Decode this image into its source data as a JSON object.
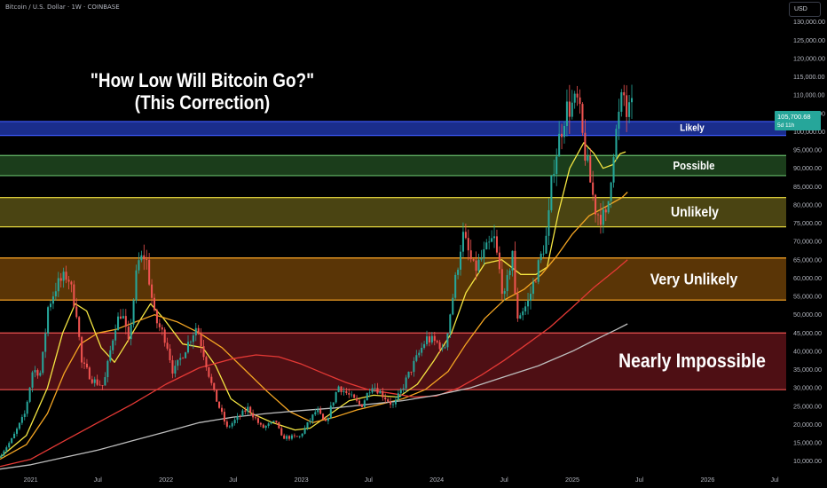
{
  "header": {
    "symbol": "Bitcoin / U.S. Dollar · 1W · COINBASE",
    "currency": "USD"
  },
  "headline": {
    "line1": "\"How Low Will Bitcoin Go?\"",
    "line2": "(This Correction)"
  },
  "price_tag": {
    "value": "105,700.68",
    "countdown": "5d 11h"
  },
  "colors": {
    "background": "#000000",
    "bull": "#26a69a",
    "bear": "#ef5350",
    "ma_fast": "#f5e642",
    "ma_mid": "#f5a623",
    "ma_slow": "#e53935",
    "ma_long": "#bdbdbd"
  },
  "chart_data": {
    "type": "candlestick",
    "timeframe": "1W",
    "y_axis": {
      "ylim": [
        7000,
        136000
      ],
      "ticks": [
        "10,000.00",
        "15,000.00",
        "20,000.00",
        "25,000.00",
        "30,000.00",
        "35,000.00",
        "40,000.00",
        "45,000.00",
        "50,000.00",
        "55,000.00",
        "60,000.00",
        "65,000.00",
        "70,000.00",
        "75,000.00",
        "80,000.00",
        "85,000.00",
        "90,000.00",
        "95,000.00",
        "100,000.00",
        "105,000.00",
        "110,000.00",
        "115,000.00",
        "120,000.00",
        "125,000.00",
        "130,000.00"
      ],
      "tick_values": [
        10000,
        15000,
        20000,
        25000,
        30000,
        35000,
        40000,
        45000,
        50000,
        55000,
        60000,
        65000,
        70000,
        75000,
        80000,
        85000,
        90000,
        95000,
        100000,
        105000,
        110000,
        115000,
        120000,
        125000,
        130000
      ]
    },
    "x_axis": {
      "labels": [
        "2021",
        "Jul",
        "2022",
        "Jul",
        "2023",
        "Jul",
        "2024",
        "Jul",
        "2025",
        "Jul",
        "2026",
        "Jul"
      ],
      "dates": [
        "2021-01-01",
        "2021-07-01",
        "2022-01-01",
        "2022-07-01",
        "2023-01-01",
        "2023-07-01",
        "2024-01-01",
        "2024-07-01",
        "2025-01-01",
        "2025-07-01",
        "2026-01-01",
        "2026-07-01"
      ],
      "range": [
        "2020-10-10",
        "2026-08-01"
      ]
    },
    "zones": [
      {
        "label": "Likely",
        "low": 99000,
        "high": 102800,
        "fill": "#1a2d8c",
        "border": "#3d5afe",
        "label_color": "#ffffff"
      },
      {
        "label": "Possible",
        "low": 88000,
        "high": 93500,
        "fill": "#1b3d1b",
        "border": "#66bb6a",
        "label_color": "#ffffff"
      },
      {
        "label": "Unlikely",
        "low": 74000,
        "high": 82000,
        "fill": "#4a4412",
        "border": "#f5e642",
        "label_color": "#ffffff"
      },
      {
        "label": "Very Unlikely",
        "low": 54000,
        "high": 65500,
        "fill": "#5a3506",
        "border": "#ffa726",
        "label_color": "#ffffff"
      },
      {
        "label": "Nearly Impossible",
        "low": 29500,
        "high": 45000,
        "fill": "#4e0f14",
        "border": "#ef5350",
        "label_color": "#ffffff"
      }
    ],
    "price_path": [
      [
        "2020-10-10",
        11000
      ],
      [
        "2020-11-15",
        16000
      ],
      [
        "2020-12-20",
        23000
      ],
      [
        "2021-01-10",
        35000
      ],
      [
        "2021-02-01",
        34000
      ],
      [
        "2021-02-20",
        52000
      ],
      [
        "2021-03-15",
        58000
      ],
      [
        "2021-04-14",
        61000
      ],
      [
        "2021-05-10",
        50000
      ],
      [
        "2021-05-20",
        37000
      ],
      [
        "2021-06-22",
        32000
      ],
      [
        "2021-07-20",
        30500
      ],
      [
        "2021-08-20",
        47000
      ],
      [
        "2021-09-07",
        51000
      ],
      [
        "2021-09-25",
        42000
      ],
      [
        "2021-10-20",
        64000
      ],
      [
        "2021-11-10",
        66500
      ],
      [
        "2021-12-05",
        49000
      ],
      [
        "2022-01-05",
        43000
      ],
      [
        "2022-01-24",
        34000
      ],
      [
        "2022-03-28",
        47000
      ],
      [
        "2022-05-12",
        29000
      ],
      [
        "2022-06-18",
        19000
      ],
      [
        "2022-08-14",
        24500
      ],
      [
        "2022-09-20",
        19000
      ],
      [
        "2022-10-30",
        20800
      ],
      [
        "2022-11-10",
        16500
      ],
      [
        "2022-12-30",
        16500
      ],
      [
        "2023-02-15",
        24000
      ],
      [
        "2023-03-10",
        20000
      ],
      [
        "2023-04-14",
        30500
      ],
      [
        "2023-06-15",
        25000
      ],
      [
        "2023-07-14",
        31000
      ],
      [
        "2023-09-11",
        25000
      ],
      [
        "2023-10-25",
        34500
      ],
      [
        "2023-12-08",
        43500
      ],
      [
        "2024-01-12",
        42000
      ],
      [
        "2024-01-23",
        39000
      ],
      [
        "2024-02-28",
        62000
      ],
      [
        "2024-03-14",
        72000
      ],
      [
        "2024-04-15",
        62000
      ],
      [
        "2024-06-07",
        71000
      ],
      [
        "2024-07-05",
        54000
      ],
      [
        "2024-07-29",
        69000
      ],
      [
        "2024-08-05",
        49000
      ],
      [
        "2024-09-06",
        53000
      ],
      [
        "2024-10-29",
        72000
      ],
      [
        "2024-11-13",
        90000
      ],
      [
        "2024-12-17",
        106000
      ],
      [
        "2025-01-20",
        108000
      ],
      [
        "2025-02-03",
        97000
      ],
      [
        "2025-02-26",
        84000
      ],
      [
        "2025-03-10",
        78000
      ],
      [
        "2025-04-07",
        76000
      ],
      [
        "2025-04-25",
        95000
      ],
      [
        "2025-05-22",
        111000
      ],
      [
        "2025-06-01",
        104000
      ],
      [
        "2025-06-08",
        105700
      ]
    ],
    "moving_averages": [
      {
        "name": "ma_fast",
        "color": "#f5e642",
        "points": [
          [
            "2020-10-10",
            11000
          ],
          [
            "2020-12-20",
            17000
          ],
          [
            "2021-02-15",
            30000
          ],
          [
            "2021-03-28",
            45000
          ],
          [
            "2021-05-01",
            53000
          ],
          [
            "2021-06-01",
            51000
          ],
          [
            "2021-07-10",
            41000
          ],
          [
            "2021-08-15",
            37000
          ],
          [
            "2021-09-15",
            42000
          ],
          [
            "2021-10-20",
            48000
          ],
          [
            "2021-11-20",
            53000
          ],
          [
            "2021-12-25",
            49000
          ],
          [
            "2022-02-15",
            42000
          ],
          [
            "2022-04-10",
            41000
          ],
          [
            "2022-05-15",
            36000
          ],
          [
            "2022-06-25",
            27000
          ],
          [
            "2022-08-20",
            23000
          ],
          [
            "2022-10-15",
            20500
          ],
          [
            "2022-12-15",
            18500
          ],
          [
            "2023-01-25",
            19000
          ],
          [
            "2023-03-15",
            22500
          ],
          [
            "2023-05-10",
            26500
          ],
          [
            "2023-07-15",
            28000
          ],
          [
            "2023-09-20",
            27500
          ],
          [
            "2023-11-10",
            31000
          ],
          [
            "2023-12-25",
            37500
          ],
          [
            "2024-02-10",
            45000
          ],
          [
            "2024-03-20",
            56000
          ],
          [
            "2024-05-10",
            64000
          ],
          [
            "2024-06-25",
            65000
          ],
          [
            "2024-08-15",
            61000
          ],
          [
            "2024-09-25",
            61000
          ],
          [
            "2024-10-25",
            63000
          ],
          [
            "2024-11-25",
            78000
          ],
          [
            "2024-12-25",
            90000
          ],
          [
            "2025-02-01",
            97000
          ],
          [
            "2025-03-01",
            94000
          ],
          [
            "2025-03-25",
            90000
          ],
          [
            "2025-04-20",
            91000
          ],
          [
            "2025-05-10",
            94000
          ],
          [
            "2025-05-25",
            94500
          ]
        ]
      },
      {
        "name": "ma_mid",
        "color": "#f5a623",
        "points": [
          [
            "2020-10-10",
            10500
          ],
          [
            "2020-12-20",
            14500
          ],
          [
            "2021-02-15",
            23000
          ],
          [
            "2021-04-01",
            34000
          ],
          [
            "2021-05-15",
            42000
          ],
          [
            "2021-07-01",
            45000
          ],
          [
            "2021-08-20",
            46000
          ],
          [
            "2021-10-10",
            48000
          ],
          [
            "2021-12-01",
            50000
          ],
          [
            "2022-02-01",
            48000
          ],
          [
            "2022-04-01",
            45000
          ],
          [
            "2022-06-01",
            41000
          ],
          [
            "2022-08-01",
            35000
          ],
          [
            "2022-10-01",
            29000
          ],
          [
            "2022-12-01",
            23500
          ],
          [
            "2023-02-01",
            20500
          ],
          [
            "2023-04-01",
            22000
          ],
          [
            "2023-06-01",
            24000
          ],
          [
            "2023-08-01",
            25500
          ],
          [
            "2023-10-01",
            27000
          ],
          [
            "2023-12-01",
            29500
          ],
          [
            "2024-02-01",
            34500
          ],
          [
            "2024-03-20",
            42000
          ],
          [
            "2024-05-10",
            49000
          ],
          [
            "2024-07-01",
            54000
          ],
          [
            "2024-08-25",
            57000
          ],
          [
            "2024-10-10",
            61000
          ],
          [
            "2024-11-20",
            66000
          ],
          [
            "2025-01-01",
            72000
          ],
          [
            "2025-02-15",
            77000
          ],
          [
            "2025-04-01",
            79500
          ],
          [
            "2025-05-15",
            82000
          ],
          [
            "2025-05-30",
            83500
          ]
        ]
      },
      {
        "name": "ma_slow",
        "color": "#e53935",
        "points": [
          [
            "2020-10-10",
            8500
          ],
          [
            "2021-01-01",
            10500
          ],
          [
            "2021-04-01",
            15500
          ],
          [
            "2021-07-01",
            20500
          ],
          [
            "2021-10-01",
            25500
          ],
          [
            "2022-01-01",
            31000
          ],
          [
            "2022-04-01",
            35500
          ],
          [
            "2022-07-01",
            38000
          ],
          [
            "2022-09-01",
            39000
          ],
          [
            "2022-11-01",
            38500
          ],
          [
            "2023-01-01",
            36500
          ],
          [
            "2023-03-01",
            34000
          ],
          [
            "2023-05-01",
            31500
          ],
          [
            "2023-07-01",
            29500
          ],
          [
            "2023-09-01",
            28500
          ],
          [
            "2023-11-01",
            27500
          ],
          [
            "2024-01-01",
            27800
          ],
          [
            "2024-03-01",
            30000
          ],
          [
            "2024-05-01",
            33500
          ],
          [
            "2024-07-01",
            37500
          ],
          [
            "2024-09-01",
            42000
          ],
          [
            "2024-11-01",
            46500
          ],
          [
            "2025-01-01",
            52000
          ],
          [
            "2025-03-01",
            57500
          ],
          [
            "2025-05-01",
            62500
          ],
          [
            "2025-05-30",
            65000
          ]
        ]
      },
      {
        "name": "ma_long",
        "color": "#bdbdbd",
        "points": [
          [
            "2020-10-10",
            7800
          ],
          [
            "2021-01-01",
            9000
          ],
          [
            "2021-04-01",
            11000
          ],
          [
            "2021-07-01",
            13000
          ],
          [
            "2021-10-01",
            15500
          ],
          [
            "2022-01-01",
            18000
          ],
          [
            "2022-04-01",
            20500
          ],
          [
            "2022-07-01",
            22000
          ],
          [
            "2022-10-01",
            23000
          ],
          [
            "2023-01-01",
            23800
          ],
          [
            "2023-04-01",
            24500
          ],
          [
            "2023-07-01",
            25500
          ],
          [
            "2023-10-01",
            26500
          ],
          [
            "2024-01-01",
            28000
          ],
          [
            "2024-04-01",
            30000
          ],
          [
            "2024-07-01",
            33000
          ],
          [
            "2024-10-01",
            36000
          ],
          [
            "2025-01-01",
            40000
          ],
          [
            "2025-03-01",
            43000
          ],
          [
            "2025-05-01",
            46000
          ],
          [
            "2025-05-30",
            47500
          ]
        ]
      }
    ]
  }
}
